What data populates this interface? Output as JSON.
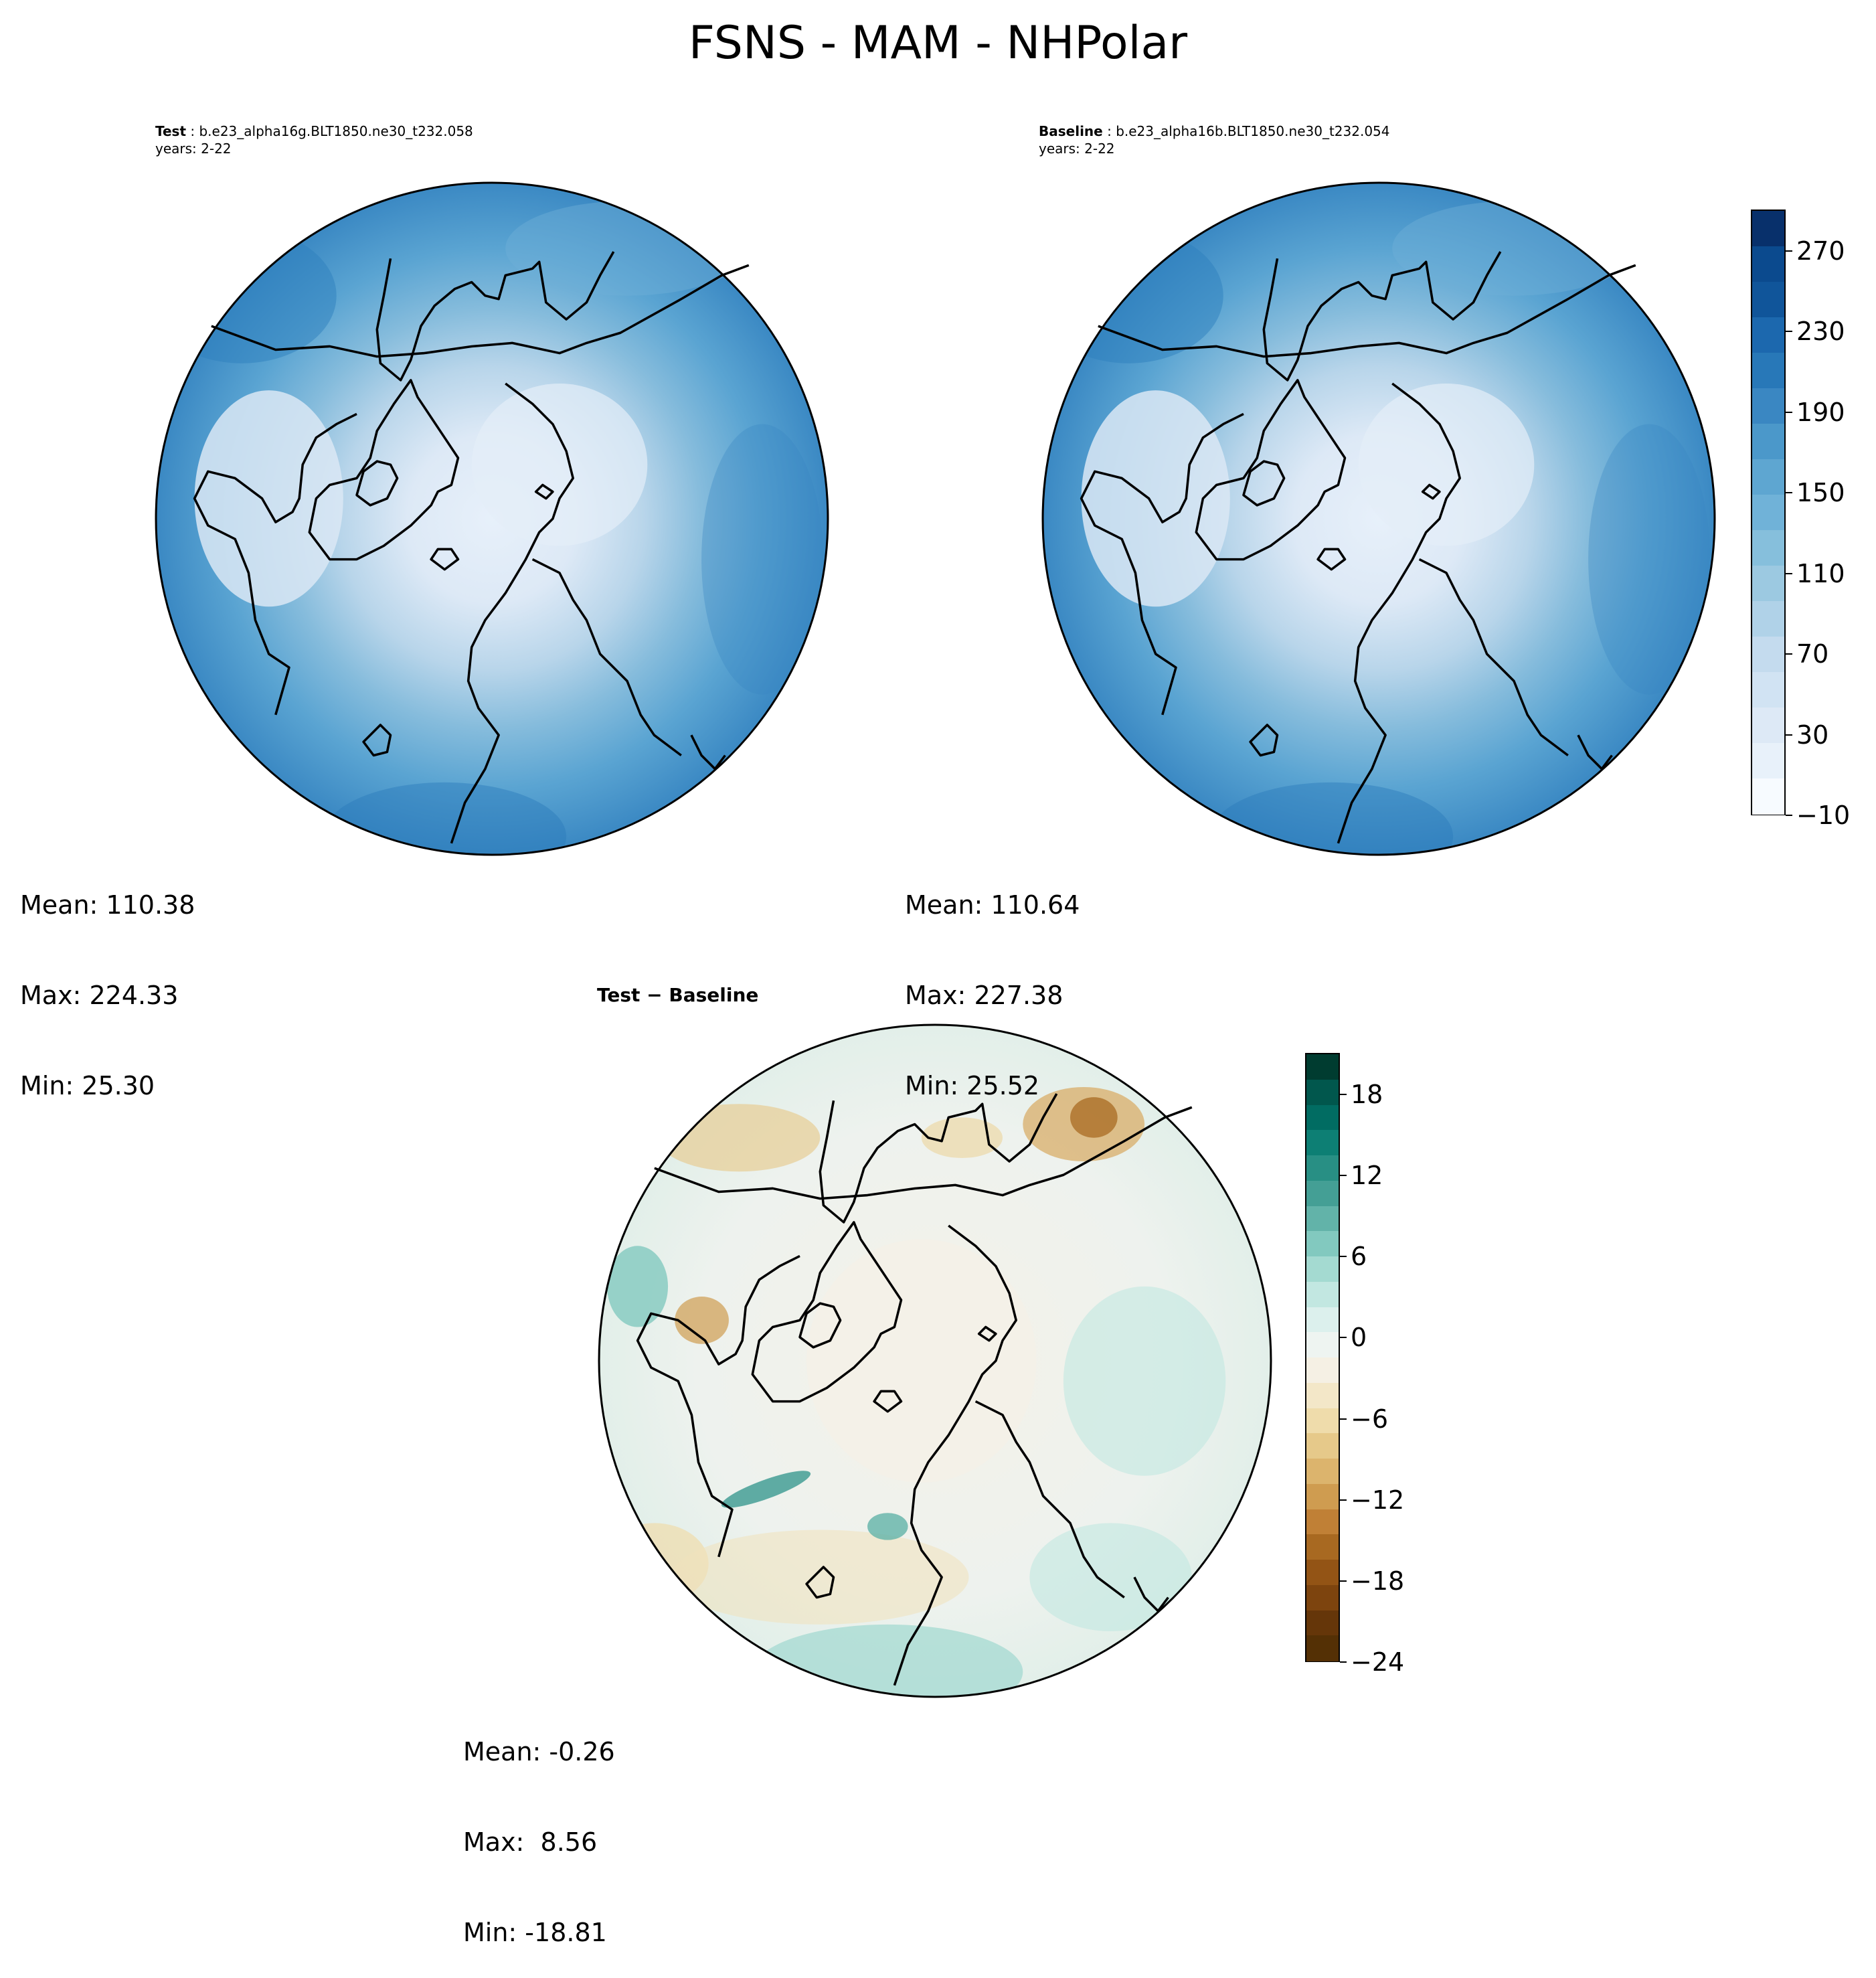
{
  "figure": {
    "title": "FSNS - MAM - NHPolar"
  },
  "panels": [
    {
      "id": "test",
      "label_bold": "Test",
      "label_rest": " : b.e23_alpha16g.BLT1850.ne30_t232.058",
      "years": "years: 2-22",
      "stats": {
        "mean": "Mean: 110.38",
        "max": "Max: 224.33",
        "min": "Min: 25.30"
      }
    },
    {
      "id": "baseline",
      "label_bold": "Baseline",
      "label_rest": " : b.e23_alpha16b.BLT1850.ne30_t232.054",
      "years": "years: 2-22",
      "stats": {
        "mean": "Mean: 110.64",
        "max": "Max: 227.38",
        "min": "Min: 25.52"
      }
    },
    {
      "id": "diff",
      "title": "Test − Baseline",
      "stats": {
        "mean": "Mean: -0.26",
        "max": "Max:  8.56",
        "min": "Min: -18.81"
      }
    }
  ],
  "colorbars": {
    "main": {
      "ticks": [
        "270",
        "230",
        "190",
        "150",
        "110",
        "70",
        "30",
        "−10"
      ],
      "colors": [
        "#08306b",
        "#0b4a8e",
        "#10559a",
        "#1c68ae",
        "#2878b8",
        "#3a87c2",
        "#4b98ca",
        "#5ea6d1",
        "#70b2d8",
        "#86bfdc",
        "#9cc9e1",
        "#b0d2e8",
        "#c4dbee",
        "#d1e3f3",
        "#dde9f6",
        "#e8f1fa",
        "#f7fbff"
      ]
    },
    "diff": {
      "ticks": [
        "18",
        "12",
        "6",
        "0",
        "−6",
        "−12",
        "−18",
        "−24"
      ],
      "colors": [
        "#003c30",
        "#01574d",
        "#016c62",
        "#0d7f74",
        "#288f84",
        "#449f95",
        "#62b3a9",
        "#82c9bf",
        "#a4dad1",
        "#c2e7e1",
        "#dcf0ed",
        "#eef4f1",
        "#f5f0e4",
        "#f3e7c8",
        "#efdcab",
        "#e6c98a",
        "#dcb46d",
        "#cf9c50",
        "#c08036",
        "#a86921",
        "#935415",
        "#7d440e",
        "#653609",
        "#543005"
      ]
    }
  }
}
